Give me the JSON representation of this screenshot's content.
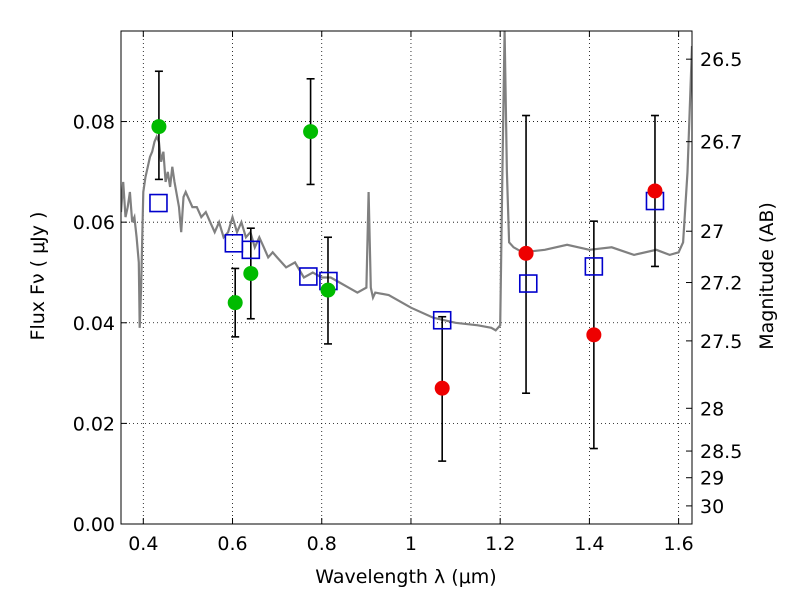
{
  "chart_data": {
    "type": "scatter",
    "title": "",
    "xlabel": "Wavelength  λ (μm)",
    "ylabel": "Flux  Fν  ( μJy )",
    "ylabel_right": "Magnitude (AB)",
    "xlim": [
      0.35,
      1.63
    ],
    "ylim": [
      0.0,
      0.098
    ],
    "grid": true,
    "x_ticks": [
      0.4,
      0.6,
      0.8,
      1.0,
      1.2,
      1.4,
      1.6
    ],
    "x_tick_labels": [
      "0.4",
      "0.6",
      "0.8",
      "1",
      "1.2",
      "1.4",
      "1.6"
    ],
    "y_ticks": [
      0.0,
      0.02,
      0.04,
      0.06,
      0.08
    ],
    "y_tick_labels": [
      "0.00",
      "0.02",
      "0.04",
      "0.06",
      "0.08"
    ],
    "right_ticks": [
      {
        "flux": 0.0924,
        "label": "26.5"
      },
      {
        "flux": 0.076,
        "label": "26.7"
      },
      {
        "flux": 0.0582,
        "label": "27"
      },
      {
        "flux": 0.048,
        "label": "27.2"
      },
      {
        "flux": 0.0364,
        "label": "27.5"
      },
      {
        "flux": 0.023,
        "label": "28"
      },
      {
        "flux": 0.0145,
        "label": "28.5"
      },
      {
        "flux": 0.0092,
        "label": "29"
      },
      {
        "flux": 0.0036,
        "label": "30"
      }
    ],
    "series": [
      {
        "name": "green detections",
        "marker": "circle",
        "color": "#00bb00",
        "points": [
          {
            "x": 0.435,
            "y": 0.079,
            "lo": 0.0685,
            "hi": 0.09
          },
          {
            "x": 0.606,
            "y": 0.044,
            "lo": 0.0372,
            "hi": 0.0508
          },
          {
            "x": 0.641,
            "y": 0.0498,
            "lo": 0.0408,
            "hi": 0.0588
          },
          {
            "x": 0.775,
            "y": 0.078,
            "lo": 0.0675,
            "hi": 0.0885
          },
          {
            "x": 0.814,
            "y": 0.0465,
            "lo": 0.0358,
            "hi": 0.057
          }
        ]
      },
      {
        "name": "red detections",
        "marker": "circle",
        "color": "#ee0000",
        "points": [
          {
            "x": 1.07,
            "y": 0.027,
            "lo": 0.0125,
            "hi": 0.0412
          },
          {
            "x": 1.258,
            "y": 0.0538,
            "lo": 0.026,
            "hi": 0.0812
          },
          {
            "x": 1.41,
            "y": 0.0376,
            "lo": 0.015,
            "hi": 0.0602
          },
          {
            "x": 1.547,
            "y": 0.0662,
            "lo": 0.0512,
            "hi": 0.0812
          }
        ]
      },
      {
        "name": "model photometry",
        "marker": "square",
        "color": "#0000cc",
        "points": [
          {
            "x": 0.434,
            "y": 0.0638
          },
          {
            "x": 0.603,
            "y": 0.0558
          },
          {
            "x": 0.641,
            "y": 0.0545
          },
          {
            "x": 0.77,
            "y": 0.0492
          },
          {
            "x": 0.815,
            "y": 0.0483
          },
          {
            "x": 1.07,
            "y": 0.0405
          },
          {
            "x": 1.263,
            "y": 0.0478
          },
          {
            "x": 1.41,
            "y": 0.0512
          },
          {
            "x": 1.547,
            "y": 0.0642
          }
        ]
      },
      {
        "name": "SED template",
        "marker": "line",
        "color": "#808080",
        "x": [
          0.35,
          0.355,
          0.36,
          0.365,
          0.37,
          0.375,
          0.38,
          0.385,
          0.39,
          0.392,
          0.395,
          0.4,
          0.405,
          0.41,
          0.415,
          0.42,
          0.425,
          0.43,
          0.435,
          0.44,
          0.445,
          0.45,
          0.455,
          0.46,
          0.465,
          0.47,
          0.48,
          0.485,
          0.49,
          0.495,
          0.5,
          0.51,
          0.52,
          0.53,
          0.54,
          0.55,
          0.56,
          0.57,
          0.58,
          0.59,
          0.6,
          0.61,
          0.62,
          0.63,
          0.64,
          0.65,
          0.66,
          0.67,
          0.68,
          0.69,
          0.7,
          0.72,
          0.74,
          0.76,
          0.78,
          0.8,
          0.82,
          0.84,
          0.86,
          0.88,
          0.9,
          0.905,
          0.91,
          0.915,
          0.92,
          0.95,
          1.0,
          1.05,
          1.1,
          1.15,
          1.18,
          1.19,
          1.2,
          1.205,
          1.21,
          1.215,
          1.22,
          1.23,
          1.25,
          1.3,
          1.35,
          1.4,
          1.45,
          1.5,
          1.55,
          1.58,
          1.6,
          1.61,
          1.62,
          1.63
        ],
        "y": [
          0.062,
          0.068,
          0.061,
          0.063,
          0.066,
          0.06,
          0.061,
          0.057,
          0.052,
          0.039,
          0.047,
          0.066,
          0.069,
          0.071,
          0.073,
          0.074,
          0.076,
          0.077,
          0.076,
          0.072,
          0.074,
          0.068,
          0.07,
          0.067,
          0.071,
          0.068,
          0.063,
          0.058,
          0.065,
          0.066,
          0.065,
          0.063,
          0.063,
          0.061,
          0.062,
          0.06,
          0.058,
          0.06,
          0.057,
          0.058,
          0.061,
          0.058,
          0.06,
          0.057,
          0.058,
          0.055,
          0.057,
          0.055,
          0.053,
          0.054,
          0.053,
          0.051,
          0.052,
          0.049,
          0.05,
          0.049,
          0.049,
          0.048,
          0.047,
          0.046,
          0.047,
          0.066,
          0.047,
          0.045,
          0.046,
          0.0455,
          0.043,
          0.041,
          0.04,
          0.0395,
          0.039,
          0.0385,
          0.0395,
          0.07,
          0.098,
          0.07,
          0.056,
          0.055,
          0.054,
          0.0545,
          0.0555,
          0.0545,
          0.055,
          0.0535,
          0.0545,
          0.0535,
          0.054,
          0.056,
          0.07,
          0.095
        ]
      }
    ]
  }
}
